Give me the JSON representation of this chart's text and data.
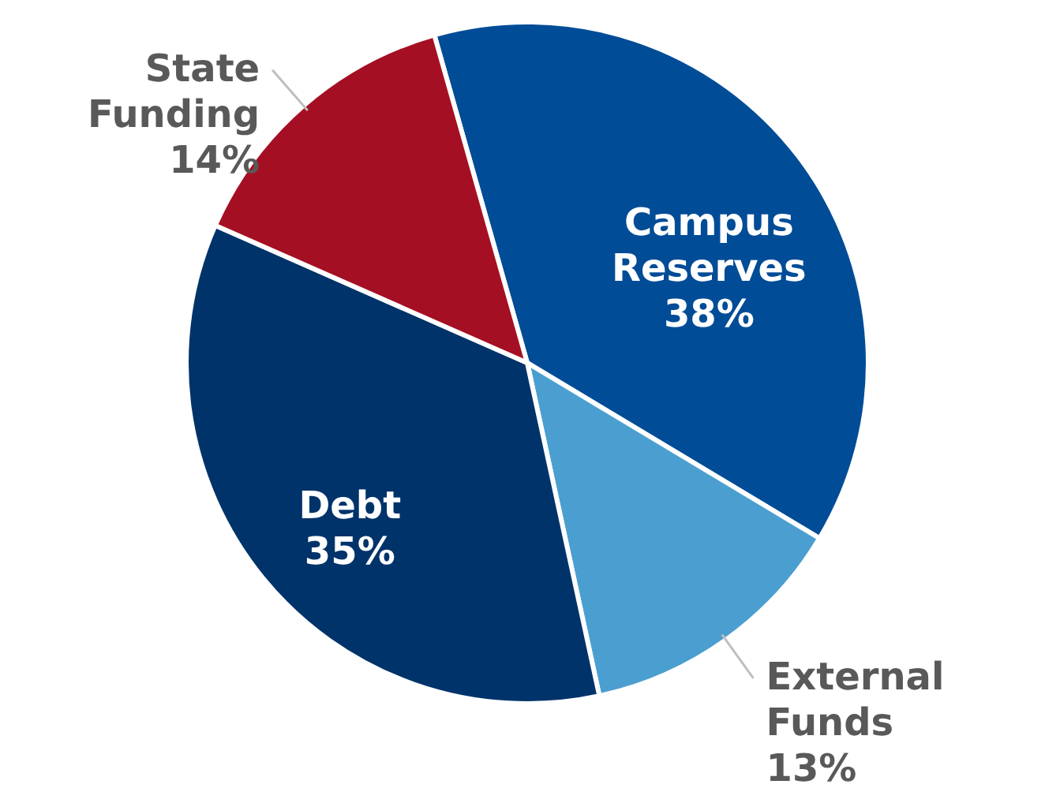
{
  "chart_data": {
    "type": "pie",
    "categories": [
      "Campus Reserves",
      "External Funds",
      "Debt",
      "State Funding"
    ],
    "values": [
      38,
      13,
      35,
      14
    ],
    "value_labels": [
      "38%",
      "13%",
      "35%",
      "14%"
    ],
    "colors": [
      "#004c97",
      "#4b9fd0",
      "#00336a",
      "#a50f23"
    ]
  }
}
